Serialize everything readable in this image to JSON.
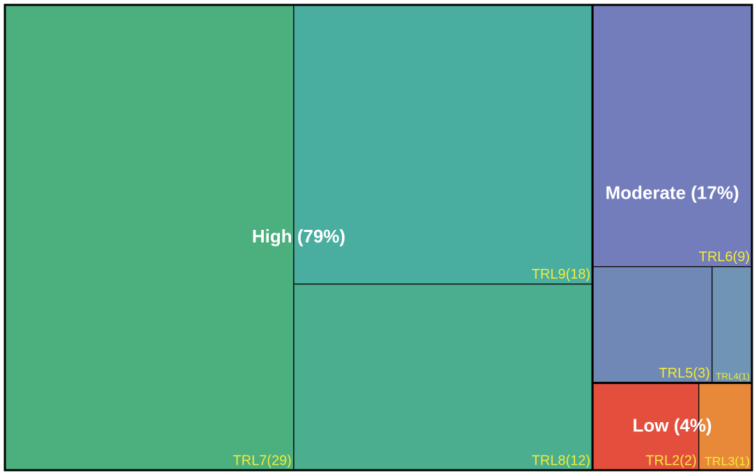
{
  "chart_data": {
    "type": "treemap",
    "groups": [
      {
        "label": "High (79%)",
        "children": [
          {
            "label": "TRL7(29)",
            "value": 29,
            "color": "#4caf7e"
          },
          {
            "label": "TRL9(18)",
            "value": 18,
            "color": "#49aea0"
          },
          {
            "label": "TRL8(12)",
            "value": 12,
            "color": "#4aae8f"
          }
        ]
      },
      {
        "label": "Moderate (17%)",
        "children": [
          {
            "label": "TRL6(9)",
            "value": 9,
            "color": "#737dbc"
          },
          {
            "label": "TRL5(3)",
            "value": 3,
            "color": "#7088b6"
          },
          {
            "label": "TRL4(1)",
            "value": 1,
            "color": "#6f94b4"
          }
        ]
      },
      {
        "label": "Low (4%)",
        "children": [
          {
            "label": "TRL2(2)",
            "value": 2,
            "color": "#e44f3d"
          },
          {
            "label": "TRL3(1)",
            "value": 1,
            "color": "#e8893a"
          }
        ]
      }
    ]
  }
}
